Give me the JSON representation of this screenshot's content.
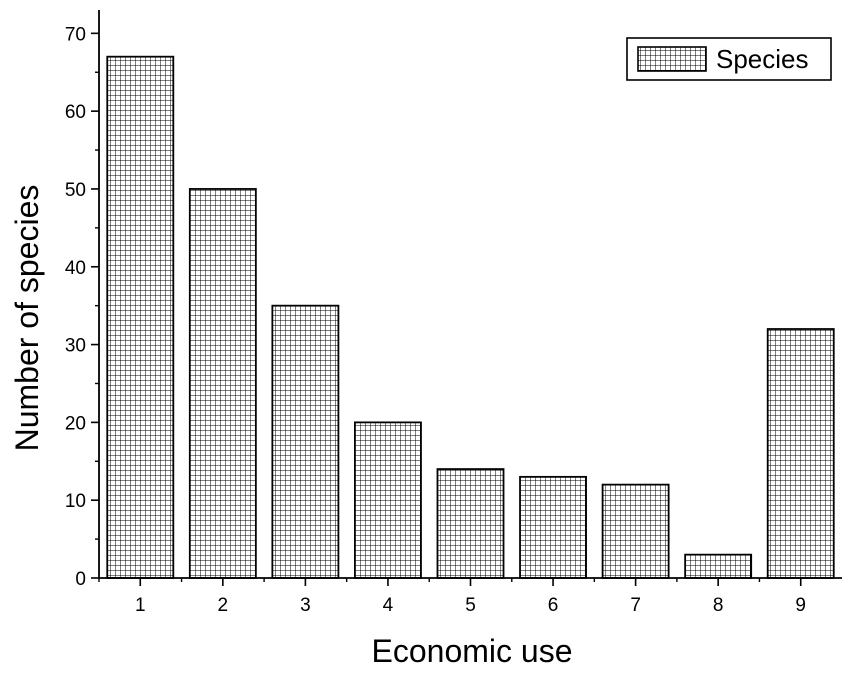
{
  "chart_data": {
    "type": "bar",
    "categories": [
      "1",
      "2",
      "3",
      "4",
      "5",
      "6",
      "7",
      "8",
      "9"
    ],
    "series": [
      {
        "name": "Species",
        "values": [
          67,
          50,
          35,
          20,
          14,
          13,
          12,
          3,
          32
        ]
      }
    ],
    "xlabel": "Economic use",
    "ylabel": "Number of species",
    "ylim": [
      0,
      73
    ],
    "yticks": [
      0,
      10,
      20,
      30,
      40,
      50,
      60,
      70
    ],
    "grid": false,
    "legend": {
      "position": "top-right",
      "entries": [
        "Species"
      ]
    },
    "colors": {
      "bar_fill": "#ffffff",
      "bar_hatch": "#000000",
      "bar_edge": "#000000",
      "axis": "#000000"
    },
    "bar_pattern": "crosshatch-grid"
  }
}
